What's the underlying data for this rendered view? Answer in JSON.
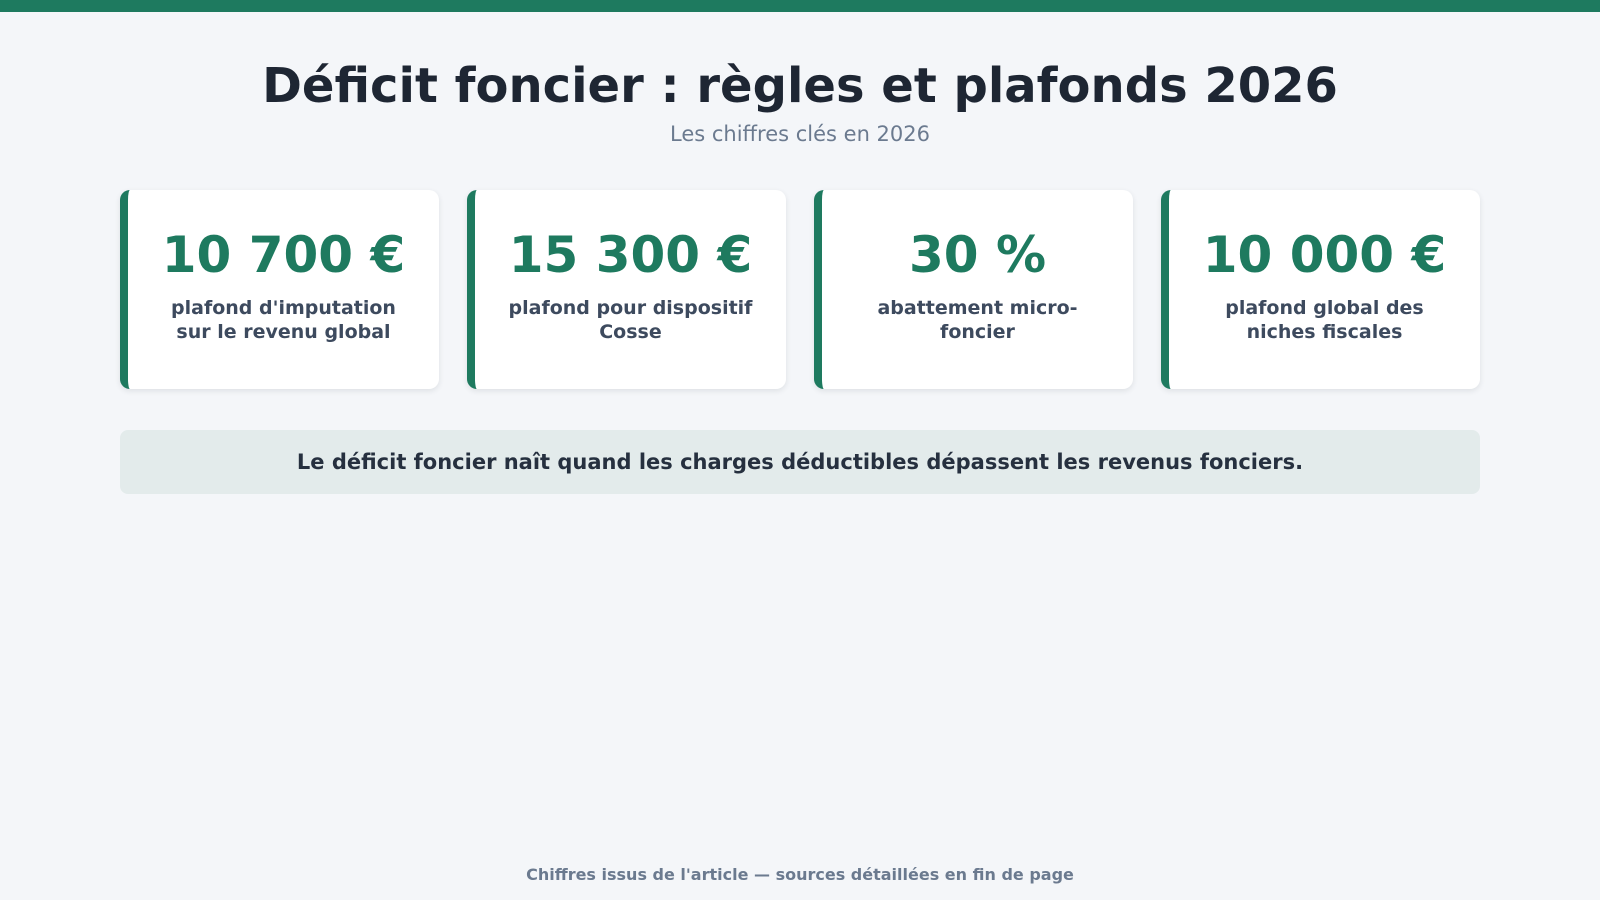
{
  "header": {
    "title": "Déficit foncier : règles et plafonds 2026",
    "subtitle": "Les chiffres clés en 2026"
  },
  "stats": [
    {
      "value": "10 700 €",
      "label": "plafond d'imputation sur le revenu global"
    },
    {
      "value": "15 300 €",
      "label": "plafond pour dispositif Cosse"
    },
    {
      "value": "30 %",
      "label": "abattement micro-foncier"
    },
    {
      "value": "10 000 €",
      "label": "plafond global des niches fiscales"
    }
  ],
  "note": "Le déficit foncier naît quand les charges déductibles dépassent les revenus fonciers.",
  "footer": "Chiffres issus de l'article — sources détaillées en fin de page",
  "colors": {
    "accent": "#1e7a5f",
    "background": "#f4f6f9",
    "note_background": "#e3ebeb",
    "title_text": "#1e2633",
    "muted_text": "#6b7a8f"
  }
}
